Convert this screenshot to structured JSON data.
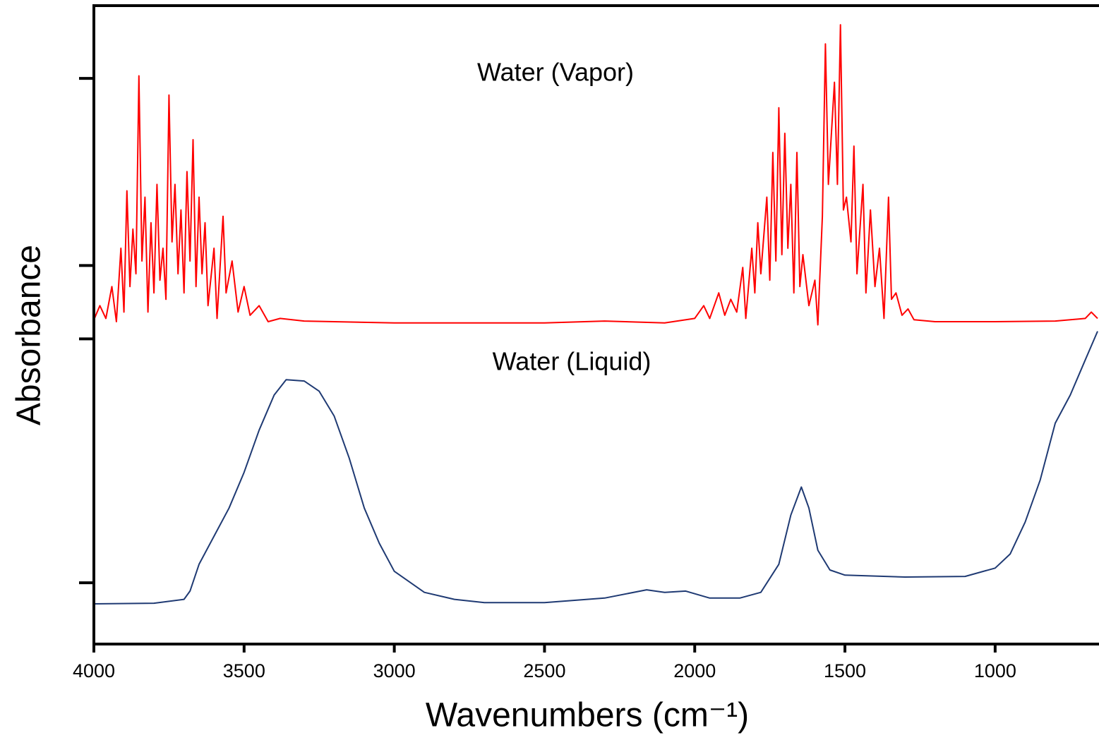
{
  "chart_data": {
    "type": "line",
    "xlabel": "Wavenumbers (cm⁻¹)",
    "ylabel": "Absorbance",
    "annotations": [
      "Water (Vapor)",
      "Water (Liquid)"
    ],
    "xlim": [
      4000,
      659
    ],
    "ylim": [
      0,
      100
    ],
    "xticks": [
      4000,
      3500,
      3000,
      2500,
      2000,
      1500,
      1000
    ],
    "yticks": [
      88.6,
      59.3,
      47.8,
      9.6
    ],
    "series": [
      {
        "name": "Water (Vapor)",
        "color": "#ff0000",
        "x": [
          4000,
          3980,
          3960,
          3940,
          3925,
          3910,
          3900,
          3890,
          3880,
          3870,
          3860,
          3850,
          3840,
          3830,
          3820,
          3810,
          3800,
          3790,
          3780,
          3770,
          3760,
          3750,
          3740,
          3730,
          3720,
          3710,
          3700,
          3690,
          3680,
          3670,
          3660,
          3650,
          3640,
          3630,
          3620,
          3600,
          3590,
          3570,
          3560,
          3540,
          3520,
          3500,
          3480,
          3450,
          3420,
          3380,
          3300,
          3000,
          2500,
          2300,
          2100,
          2000,
          1970,
          1950,
          1920,
          1900,
          1880,
          1860,
          1840,
          1830,
          1810,
          1800,
          1790,
          1780,
          1760,
          1750,
          1740,
          1730,
          1720,
          1710,
          1700,
          1690,
          1680,
          1670,
          1660,
          1650,
          1640,
          1620,
          1600,
          1590,
          1575,
          1565,
          1555,
          1545,
          1535,
          1525,
          1515,
          1505,
          1495,
          1480,
          1470,
          1460,
          1440,
          1430,
          1415,
          1400,
          1385,
          1370,
          1355,
          1345,
          1330,
          1310,
          1290,
          1270,
          1200,
          1000,
          800,
          700,
          680,
          659
        ],
        "values": [
          50.8,
          53,
          51,
          56,
          50.5,
          62,
          52,
          71,
          56,
          65,
          58,
          89,
          60,
          70,
          52,
          66,
          55,
          72,
          57,
          62,
          54,
          86,
          63,
          72,
          58,
          68,
          55,
          74,
          60,
          79,
          56,
          70,
          58,
          66,
          53,
          62,
          51,
          67,
          55,
          60,
          52,
          56,
          51.5,
          53,
          50.5,
          51,
          50.6,
          50.3,
          50.3,
          50.6,
          50.3,
          51,
          53,
          51,
          55,
          51.5,
          54,
          52,
          59,
          51,
          62,
          55,
          66,
          58,
          70,
          57,
          77,
          60,
          84,
          61,
          80,
          62,
          72,
          55,
          77,
          56,
          61,
          53,
          57,
          50,
          67,
          94,
          72,
          80,
          88,
          72,
          97,
          68,
          70,
          63,
          78,
          58,
          72,
          55,
          68,
          56,
          62,
          51,
          70,
          54,
          55,
          51.5,
          52.5,
          50.8,
          50.5,
          50.5,
          50.6,
          51,
          52,
          51
        ]
      },
      {
        "name": "Water (Liquid)",
        "color": "#1f3a73",
        "x": [
          4000,
          3800,
          3700,
          3680,
          3650,
          3600,
          3550,
          3500,
          3450,
          3400,
          3360,
          3300,
          3250,
          3200,
          3150,
          3100,
          3050,
          3000,
          2900,
          2800,
          2700,
          2500,
          2300,
          2160,
          2100,
          2030,
          1950,
          1850,
          1780,
          1720,
          1680,
          1645,
          1620,
          1590,
          1550,
          1500,
          1300,
          1100,
          1000,
          950,
          900,
          850,
          800,
          750,
          700,
          659
        ],
        "values": [
          6.3,
          6.4,
          7.0,
          8.3,
          12.5,
          16.9,
          21.3,
          26.9,
          33.5,
          39.0,
          41.4,
          41.2,
          39.6,
          35.7,
          29.1,
          21.3,
          15.8,
          11.4,
          8.1,
          7.0,
          6.5,
          6.5,
          7.2,
          8.5,
          8.1,
          8.3,
          7.2,
          7.2,
          8.1,
          12.5,
          20.2,
          24.6,
          21.3,
          14.7,
          11.6,
          10.8,
          10.5,
          10.6,
          11.9,
          14.1,
          19.1,
          25.7,
          34.6,
          39.0,
          44.5,
          49.0
        ]
      }
    ]
  }
}
